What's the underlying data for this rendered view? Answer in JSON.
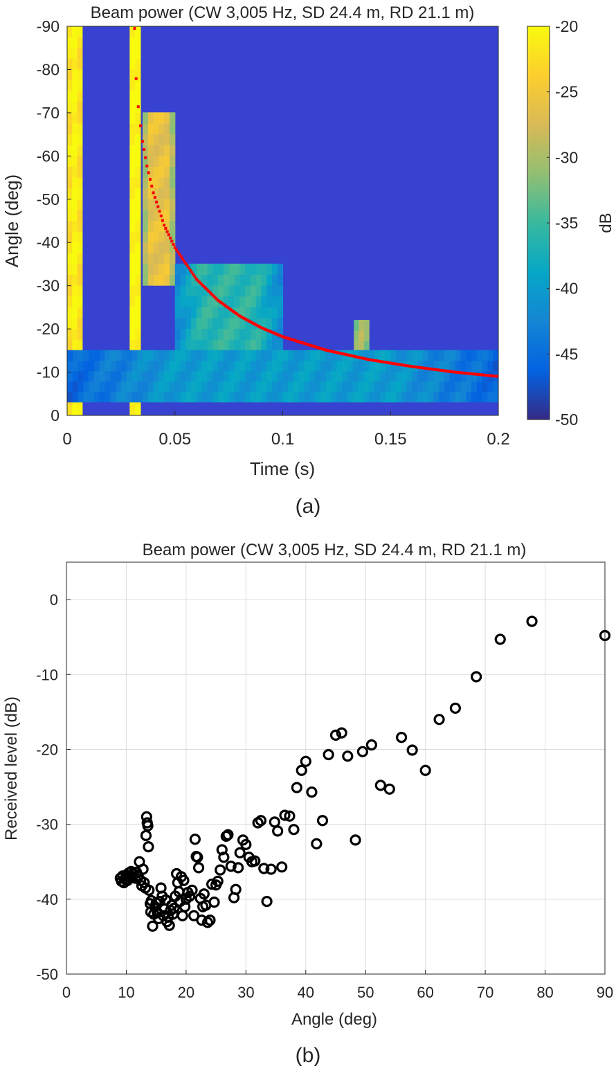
{
  "chart_data": [
    {
      "panel_label": "(a)",
      "type": "heatmap",
      "title": "Beam power (CW 3,005 Hz, SD 24.4 m, RD 21.1 m)",
      "xlabel": "Time (s)",
      "ylabel": "Angle (deg)",
      "xlim": [
        0,
        0.2
      ],
      "ylim": [
        0,
        -90
      ],
      "xticks": [
        "0",
        "0.05",
        "0.1",
        "0.15",
        "0.2"
      ],
      "yticks": [
        "-90",
        "-80",
        "-70",
        "-60",
        "-50",
        "-40",
        "-30",
        "-20",
        "-10",
        "0"
      ],
      "colorbar": {
        "label": "dB",
        "range": [
          -50,
          -20
        ],
        "ticks": [
          "-20",
          "-25",
          "-30",
          "-35",
          "-40",
          "-45",
          "-50"
        ],
        "colormap": "parula"
      },
      "features": [
        {
          "time": [
            0.0,
            0.007
          ],
          "angle": [
            0,
            -90
          ],
          "level_db": -20
        },
        {
          "time": [
            0.029,
            0.034
          ],
          "angle": [
            0,
            -90
          ],
          "level_db": -20
        },
        {
          "time": [
            0.035,
            0.05
          ],
          "angle": [
            -30,
            -70
          ],
          "level_db": -26
        },
        {
          "time": [
            0.05,
            0.1
          ],
          "angle": [
            -15,
            -35
          ],
          "level_db": -36
        },
        {
          "time": [
            0.133,
            0.14
          ],
          "angle": [
            -5,
            -22
          ],
          "level_db": -30
        },
        {
          "time": [
            0.0,
            0.2
          ],
          "angle": [
            -3,
            -15
          ],
          "level_db": -40
        }
      ],
      "overlay_curve": {
        "color": "#ff0000",
        "time": [
          0.0313,
          0.032,
          0.033,
          0.034,
          0.035,
          0.037,
          0.04,
          0.045,
          0.05,
          0.06,
          0.07,
          0.08,
          0.09,
          0.1,
          0.12,
          0.14,
          0.16,
          0.18,
          0.2
        ],
        "angle": [
          -89.5,
          -77.9,
          -71.4,
          -67.0,
          -63.4,
          -57.7,
          -51.5,
          -44.0,
          -38.8,
          -31.5,
          -26.6,
          -23.0,
          -20.3,
          -18.2,
          -15.1,
          -12.9,
          -11.3,
          -10.0,
          -9.0
        ]
      }
    },
    {
      "panel_label": "(b)",
      "type": "scatter",
      "title": "Beam power (CW 3,005 Hz, SD 24.4 m, RD 21.1 m)",
      "xlabel": "Angle (deg)",
      "ylabel": "Received level (dB)",
      "xlim": [
        0,
        90
      ],
      "ylim": [
        -50,
        5
      ],
      "xticks": [
        "0",
        "10",
        "20",
        "30",
        "40",
        "50",
        "60",
        "70",
        "80",
        "90"
      ],
      "yticks": [
        "0",
        "-10",
        "-20",
        "-30",
        "-40",
        "-50"
      ],
      "grid": true,
      "marker": "circle-open",
      "points": [
        [
          9.0,
          -37.2
        ],
        [
          9.2,
          -37.6
        ],
        [
          9.4,
          -36.9
        ],
        [
          9.6,
          -37.8
        ],
        [
          9.8,
          -37.3
        ],
        [
          10.0,
          -36.8
        ],
        [
          10.2,
          -37.5
        ],
        [
          10.4,
          -36.5
        ],
        [
          10.6,
          -37.1
        ],
        [
          10.8,
          -36.3
        ],
        [
          11.0,
          -37.0
        ],
        [
          11.2,
          -36.6
        ],
        [
          11.5,
          -37.2
        ],
        [
          11.7,
          -36.4
        ],
        [
          12.0,
          -36.9
        ],
        [
          12.2,
          -35.0
        ],
        [
          12.4,
          -37.5
        ],
        [
          12.6,
          -38.2
        ],
        [
          12.8,
          -36.0
        ],
        [
          13.0,
          -37.8
        ],
        [
          13.2,
          -38.5
        ],
        [
          13.3,
          -31.5
        ],
        [
          13.4,
          -29.0
        ],
        [
          13.5,
          -29.8
        ],
        [
          13.6,
          -30.2
        ],
        [
          13.7,
          -33.0
        ],
        [
          13.8,
          -38.8
        ],
        [
          14.0,
          -40.6
        ],
        [
          14.1,
          -41.7
        ],
        [
          14.2,
          -40.2
        ],
        [
          14.4,
          -43.6
        ],
        [
          14.6,
          -42.0
        ],
        [
          14.8,
          -41.0
        ],
        [
          15.0,
          -40.5
        ],
        [
          15.2,
          -41.8
        ],
        [
          15.4,
          -42.6
        ],
        [
          15.6,
          -40.3
        ],
        [
          15.8,
          -38.5
        ],
        [
          16.0,
          -39.6
        ],
        [
          16.2,
          -42.2
        ],
        [
          16.4,
          -41.3
        ],
        [
          16.6,
          -40.1
        ],
        [
          16.8,
          -43.0
        ],
        [
          17.0,
          -42.4
        ],
        [
          17.2,
          -43.5
        ],
        [
          17.4,
          -41.5
        ],
        [
          17.6,
          -40.8
        ],
        [
          17.8,
          -42.0
        ],
        [
          18.0,
          -41.2
        ],
        [
          18.2,
          -39.6
        ],
        [
          18.4,
          -36.6
        ],
        [
          18.6,
          -37.8
        ],
        [
          18.8,
          -39.0
        ],
        [
          19.0,
          -40.3
        ],
        [
          19.2,
          -37.0
        ],
        [
          19.4,
          -42.2
        ],
        [
          19.6,
          -37.5
        ],
        [
          19.8,
          -41.0
        ],
        [
          20.0,
          -40.0
        ],
        [
          20.3,
          -39.1
        ],
        [
          20.6,
          -39.6
        ],
        [
          21.0,
          -38.8
        ],
        [
          21.3,
          -42.2
        ],
        [
          21.5,
          -32.0
        ],
        [
          21.7,
          -34.3
        ],
        [
          21.9,
          -34.4
        ],
        [
          22.1,
          -35.8
        ],
        [
          22.4,
          -39.9
        ],
        [
          22.6,
          -42.8
        ],
        [
          22.8,
          -41.0
        ],
        [
          23.0,
          -39.3
        ],
        [
          23.3,
          -40.8
        ],
        [
          23.6,
          -43.1
        ],
        [
          24.0,
          -42.8
        ],
        [
          24.3,
          -38.0
        ],
        [
          24.7,
          -40.4
        ],
        [
          25.0,
          -38.1
        ],
        [
          25.3,
          -37.6
        ],
        [
          25.7,
          -36.1
        ],
        [
          26.0,
          -33.4
        ],
        [
          26.3,
          -34.4
        ],
        [
          26.7,
          -31.6
        ],
        [
          27.0,
          -31.4
        ],
        [
          27.5,
          -35.6
        ],
        [
          28.0,
          -39.8
        ],
        [
          28.3,
          -38.7
        ],
        [
          28.7,
          -35.8
        ],
        [
          29.0,
          -33.8
        ],
        [
          29.5,
          -32.1
        ],
        [
          30.0,
          -32.7
        ],
        [
          30.5,
          -34.4
        ],
        [
          31.0,
          -35.0
        ],
        [
          31.5,
          -34.9
        ],
        [
          32.0,
          -29.8
        ],
        [
          32.5,
          -29.5
        ],
        [
          33.0,
          -35.9
        ],
        [
          33.5,
          -40.3
        ],
        [
          34.2,
          -36.0
        ],
        [
          34.8,
          -29.7
        ],
        [
          35.3,
          -30.9
        ],
        [
          36.0,
          -35.7
        ],
        [
          36.5,
          -28.8
        ],
        [
          37.3,
          -28.9
        ],
        [
          38.0,
          -30.7
        ],
        [
          38.5,
          -25.1
        ],
        [
          39.3,
          -22.8
        ],
        [
          40.0,
          -21.6
        ],
        [
          41.0,
          -25.7
        ],
        [
          41.8,
          -32.6
        ],
        [
          42.8,
          -29.5
        ],
        [
          43.8,
          -20.7
        ],
        [
          45.0,
          -18.1
        ],
        [
          46.0,
          -17.8
        ],
        [
          47.0,
          -20.9
        ],
        [
          48.3,
          -32.1
        ],
        [
          49.5,
          -20.3
        ],
        [
          51.0,
          -19.4
        ],
        [
          52.5,
          -24.8
        ],
        [
          54.0,
          -25.3
        ],
        [
          56.0,
          -18.4
        ],
        [
          57.8,
          -20.1
        ],
        [
          60.0,
          -22.8
        ],
        [
          62.3,
          -16.0
        ],
        [
          65.0,
          -14.5
        ],
        [
          68.5,
          -10.3
        ],
        [
          72.5,
          -5.3
        ],
        [
          77.8,
          -2.9
        ],
        [
          90.0,
          -4.8
        ]
      ]
    }
  ]
}
